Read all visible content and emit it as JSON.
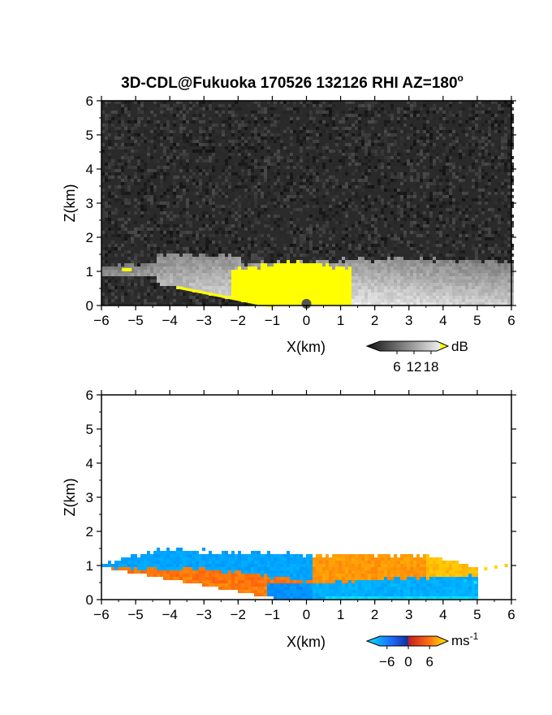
{
  "chart_data": [
    {
      "type": "heatmap",
      "title": "3D-CDL@Fukuoka 170526 132126 RHI AZ=180",
      "title_superscript": "o",
      "xlabel": "X(km)",
      "ylabel": "Z(km)",
      "xlim": [
        -6,
        6
      ],
      "ylim": [
        0,
        6
      ],
      "x_ticks": [
        -6,
        -5,
        -4,
        -3,
        -2,
        -1,
        0,
        1,
        2,
        3,
        4,
        5,
        6
      ],
      "y_ticks": [
        0,
        1,
        2,
        3,
        4,
        5,
        6
      ],
      "colormap": "grayscale with yellow saturation",
      "colorbar": {
        "label": "dB",
        "ticks": [
          6,
          12,
          18
        ],
        "range": [
          0,
          20
        ]
      },
      "colors": {
        "background": "#2a2a2a",
        "saturation": "#ffff00"
      },
      "layer": {
        "x_start": -6.0,
        "x_end": 6.0,
        "top_km": 1.45,
        "saturated_x_range": [
          -2.2,
          1.3
        ],
        "saturated_z_max": 1.35
      }
    },
    {
      "type": "heatmap",
      "xlabel": "X(km)",
      "ylabel": "Z(km)",
      "xlim": [
        -6,
        6
      ],
      "ylim": [
        0,
        6
      ],
      "x_ticks": [
        -6,
        -5,
        -4,
        -3,
        -2,
        -1,
        0,
        1,
        2,
        3,
        4,
        5,
        6
      ],
      "y_ticks": [
        0,
        1,
        2,
        3,
        4,
        5,
        6
      ],
      "colormap": "cyan-blue-red-yellow diverging",
      "colorbar": {
        "label": "ms",
        "label_superscript": "-1",
        "ticks": [
          -6,
          0,
          6
        ],
        "range": [
          -8,
          8
        ]
      },
      "colors": {
        "toward": "#1e6cff",
        "away": "#ff4a14",
        "max": "#ffcc00",
        "min": "#00e5ff"
      },
      "velocity_regions": [
        {
          "x_range": [
            -5.6,
            0.1
          ],
          "z_range": [
            0.0,
            1.0
          ],
          "sign": "positive",
          "value_ms": 4
        },
        {
          "x_range": [
            -5.3,
            0.1
          ],
          "z_range": [
            0.9,
            1.6
          ],
          "sign": "negative",
          "value_ms": -4
        },
        {
          "x_range": [
            0.1,
            4.8
          ],
          "z_range": [
            0.0,
            0.8
          ],
          "sign": "negative",
          "value_ms": -5
        },
        {
          "x_range": [
            0.1,
            5.0
          ],
          "z_range": [
            0.6,
            1.4
          ],
          "sign": "positive",
          "value_ms": 5
        }
      ]
    }
  ]
}
